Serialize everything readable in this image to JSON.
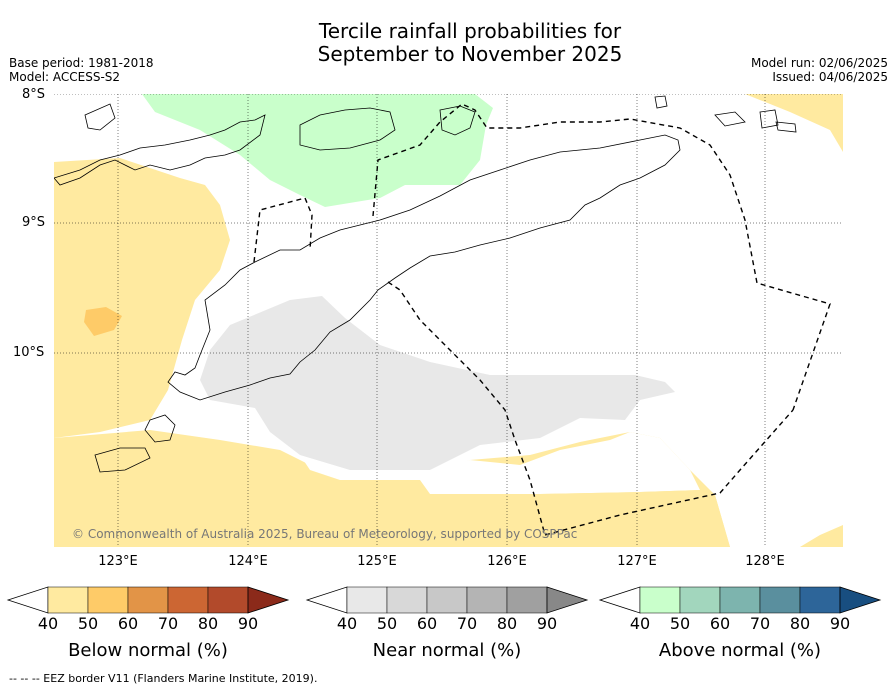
{
  "title_line1": "Tercile rainfall probabilities for",
  "title_line2": "September to November 2025",
  "base_period": "Base period: 1981-2018",
  "model": "Model: ACCESS-S2",
  "model_run": "Model run: 02/06/2025",
  "issued": "Issued: 04/06/2025",
  "lat_labels": [
    "8°S",
    "9°S",
    "10°S"
  ],
  "lon_labels": [
    "123°E",
    "124°E",
    "125°E",
    "126°E",
    "127°E",
    "128°E"
  ],
  "copyright": "© Commonwealth of Australia 2025, Bureau of Meteorology, supported by COSPPac",
  "colorbars": [
    {
      "title": "Below normal (%)",
      "ticks": [
        "40",
        "50",
        "60",
        "70",
        "80",
        "90"
      ],
      "colors": [
        "#ffffff",
        "#ffeaa0",
        "#fecb68",
        "#e29447",
        "#cc6633",
        "#b24a2b",
        "#8b2a1a"
      ]
    },
    {
      "title": "Near normal (%)",
      "ticks": [
        "40",
        "50",
        "60",
        "70",
        "80",
        "90"
      ],
      "colors": [
        "#ffffff",
        "#e8e8e8",
        "#d8d8d8",
        "#c8c8c8",
        "#b4b4b4",
        "#a0a0a0",
        "#888888"
      ]
    },
    {
      "title": "Above normal (%)",
      "ticks": [
        "40",
        "50",
        "60",
        "70",
        "80",
        "90"
      ],
      "colors": [
        "#ffffff",
        "#c9ffcb",
        "#a2d6bd",
        "#7db4ae",
        "#5a8f9e",
        "#2d6599",
        "#184e80"
      ]
    }
  ],
  "footnote": "-- -- -- EEZ border V11 (Flanders Marine Institute, 2019)."
}
